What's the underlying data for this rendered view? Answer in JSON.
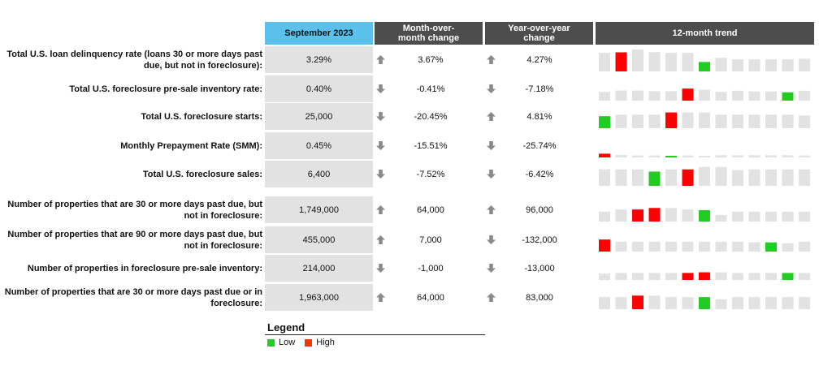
{
  "headers": {
    "period": "September 2023",
    "mom": "Month-over-month change",
    "yoy": "Year-over-year change",
    "trend": "12-month trend"
  },
  "colors": {
    "low": "#22cc22",
    "high": "#ff0000",
    "neutral": "#e2e2e2",
    "arrow": "#8a8a8a"
  },
  "legend": {
    "title": "Legend",
    "low": "Low",
    "high": "High"
  },
  "rows": [
    {
      "label": "Total U.S. loan delinquency rate (loans 30 or more days past due, but not in foreclosure):",
      "value": "3.29%",
      "mom_dir": "up",
      "mom": "3.67%",
      "yoy_dir": "up",
      "yoy": "4.27%",
      "low_month": 7,
      "high_month": 2
    },
    {
      "label": "Total U.S. foreclosure pre-sale inventory rate:",
      "value": "0.40%",
      "mom_dir": "down",
      "mom": "-0.41%",
      "yoy_dir": "down",
      "yoy": "-7.18%",
      "low_month": 12,
      "high_month": 6
    },
    {
      "label": "Total U.S. foreclosure starts:",
      "value": "25,000",
      "mom_dir": "down",
      "mom": "-20.45%",
      "yoy_dir": "up",
      "yoy": "4.81%",
      "low_month": 1,
      "high_month": 5
    },
    {
      "label": "Monthly Prepayment Rate (SMM):",
      "value": "0.45%",
      "mom_dir": "down",
      "mom": "-15.51%",
      "yoy_dir": "down",
      "yoy": "-25.74%",
      "low_month": 5,
      "high_month": 1
    },
    {
      "label": "Total U.S. foreclosure sales:",
      "value": "6,400",
      "mom_dir": "down",
      "mom": "-7.52%",
      "yoy_dir": "down",
      "yoy": "-6.42%",
      "low_month": 4,
      "high_month": 6
    },
    {
      "label": "Number of properties that are 30 or more days past due, but not in foreclosure:",
      "value": "1,749,000",
      "mom_dir": "up",
      "mom": "64,000",
      "yoy_dir": "up",
      "yoy": "96,000",
      "low_month": 7,
      "high_month": [
        3,
        4
      ]
    },
    {
      "label": "Number of properties that are 90 or more days past due, but not in foreclosure:",
      "value": "455,000",
      "mom_dir": "up",
      "mom": "7,000",
      "yoy_dir": "down",
      "yoy": "-132,000",
      "low_month": 11,
      "high_month": 1
    },
    {
      "label": "Number of properties in foreclosure pre-sale inventory:",
      "value": "214,000",
      "mom_dir": "down",
      "mom": "-1,000",
      "yoy_dir": "down",
      "yoy": "-13,000",
      "low_month": 12,
      "high_month": [
        6,
        7
      ]
    },
    {
      "label": "Number of properties that are 30 or more days past due or in foreclosure:",
      "value": "1,963,000",
      "mom_dir": "up",
      "mom": "64,000",
      "yoy_dir": "up",
      "yoy": "83,000",
      "low_month": 7,
      "high_month": 3
    }
  ],
  "chart_data": {
    "type": "table",
    "columns": [
      "September 2023",
      "Month-over-month change",
      "Year-over-year change",
      "12-month trend"
    ],
    "trend_relative_values": [
      [
        0.85,
        0.87,
        1.0,
        0.88,
        0.85,
        0.85,
        0.43,
        0.62,
        0.55,
        0.55,
        0.55,
        0.55,
        0.58
      ],
      [
        0.4,
        0.46,
        0.46,
        0.43,
        0.43,
        0.55,
        0.5,
        0.4,
        0.45,
        0.42,
        0.42,
        0.38,
        0.45
      ],
      [
        0.55,
        0.62,
        0.62,
        0.62,
        0.72,
        0.72,
        0.72,
        0.62,
        0.62,
        0.62,
        0.62,
        0.62,
        0.58
      ],
      [
        0.17,
        0.11,
        0.09,
        0.09,
        0.07,
        0.09,
        0.07,
        0.1,
        0.1,
        0.1,
        0.1,
        0.1,
        0.09
      ],
      [
        0.75,
        0.75,
        0.75,
        0.65,
        0.75,
        0.75,
        0.86,
        0.86,
        0.72,
        0.75,
        0.75,
        0.75,
        0.75
      ],
      [
        0.45,
        0.55,
        0.55,
        0.62,
        0.62,
        0.55,
        0.52,
        0.3,
        0.45,
        0.45,
        0.45,
        0.45,
        0.45
      ],
      [
        0.55,
        0.45,
        0.45,
        0.45,
        0.45,
        0.45,
        0.45,
        0.45,
        0.45,
        0.42,
        0.42,
        0.38,
        0.45
      ],
      [
        0.3,
        0.32,
        0.32,
        0.32,
        0.32,
        0.32,
        0.35,
        0.35,
        0.32,
        0.32,
        0.32,
        0.32,
        0.32
      ],
      [
        0.55,
        0.55,
        0.62,
        0.62,
        0.55,
        0.55,
        0.55,
        0.45,
        0.55,
        0.55,
        0.55,
        0.55,
        0.55
      ]
    ]
  }
}
